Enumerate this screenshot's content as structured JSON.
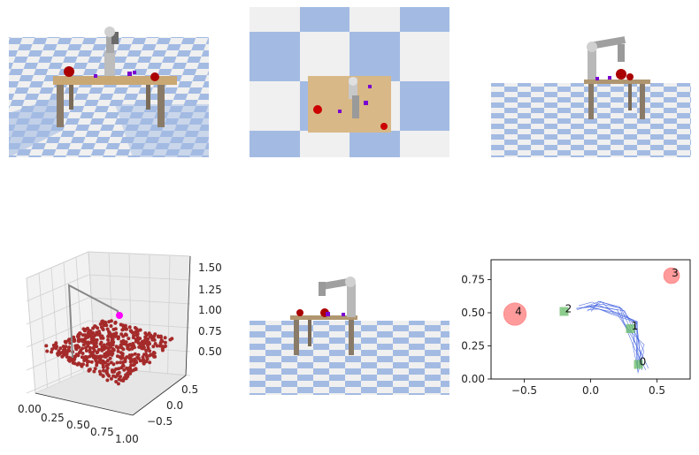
{
  "scatter3d": {
    "x_ticks": [
      "0.00",
      "0.25",
      "0.50",
      "0.75",
      "1.00"
    ],
    "y_ticks": [
      "0.5",
      "0.0",
      "−0.5"
    ],
    "z_ticks": [
      "0.50",
      "0.75",
      "1.00",
      "1.25",
      "1.50"
    ],
    "colors": {
      "points": "#a52a2a",
      "target": "#ff00ff",
      "path": "#888888"
    }
  },
  "chart_data": {
    "type": "scatter",
    "xlim": [
      -0.75,
      0.75
    ],
    "ylim": [
      0.0,
      0.9
    ],
    "x_ticks": [
      "−0.5",
      "0.0",
      "0.5"
    ],
    "y_ticks": [
      "0.00",
      "0.25",
      "0.50",
      "0.75"
    ],
    "obstacles": [
      {
        "label": "3",
        "x": 0.61,
        "y": 0.78,
        "r": 0.06
      },
      {
        "label": "4",
        "x": -0.57,
        "y": 0.49,
        "r": 0.085
      }
    ],
    "waypoints": [
      {
        "label": "0",
        "x": 0.36,
        "y": 0.11
      },
      {
        "label": "1",
        "x": 0.3,
        "y": 0.38
      },
      {
        "label": "2",
        "x": -0.2,
        "y": 0.51
      }
    ],
    "colors": {
      "obstacle": "#ff6666",
      "waypoint": "#66bb66",
      "trajectory": "#3355dd"
    }
  }
}
